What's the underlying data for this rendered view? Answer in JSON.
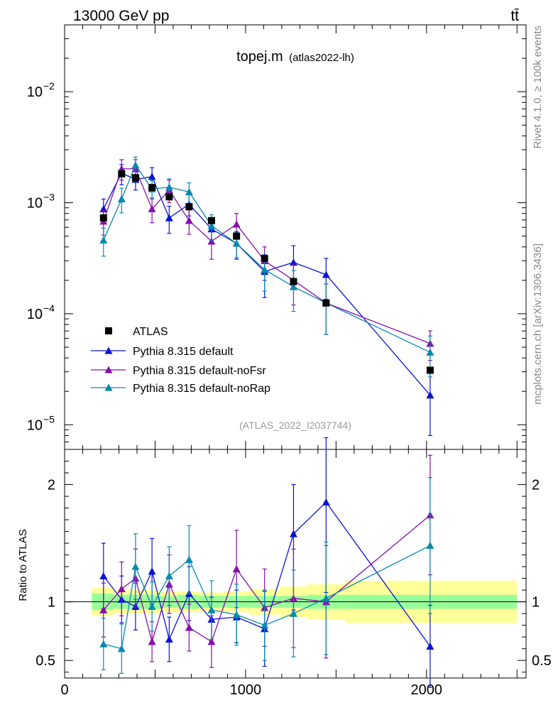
{
  "header": {
    "energy_label": "13000 GeV pp",
    "process_label": "tt̄",
    "title_main": "topej.m",
    "title_sub": "(atlas2022-lh)",
    "analysis_id": "(ATLAS_2022_I2037744)",
    "side_rivet": "Rivet 4.1.0, ≥ 100k events",
    "side_mcplots": "mcplots.cern.ch [arXiv:1306.3436]"
  },
  "chart_data": {
    "type": "scatter",
    "x_axis": {
      "range": [
        0,
        2550
      ],
      "ticks": [
        "0",
        "1000",
        "2000"
      ]
    },
    "main": {
      "yscale": "log",
      "ylim": [
        6e-06,
        0.04
      ],
      "tick_labels": [
        {
          "value": 0.01,
          "base": "10",
          "exp": "−2"
        },
        {
          "value": 0.001,
          "base": "10",
          "exp": "−3"
        },
        {
          "value": 0.0001,
          "base": "10",
          "exp": "−4"
        },
        {
          "value": 1e-05,
          "base": "10",
          "exp": "−5"
        }
      ]
    },
    "ratio": {
      "ylabel": "Ratio to ATLAS",
      "ylim": [
        0.35,
        2.3
      ],
      "tick_labels": [
        "2",
        "1",
        "0.5"
      ],
      "tick_values": [
        2,
        1,
        0.5
      ]
    },
    "legend": {
      "placement": "lower-left",
      "entries": [
        "ATLAS",
        "Pythia 8.315 default",
        "Pythia 8.315 default-noFsr",
        "Pythia 8.315 default-noRap"
      ]
    },
    "bins": [
      150,
      270,
      350,
      440,
      530,
      630,
      740,
      880,
      1020,
      1190,
      1340,
      1550,
      2500
    ],
    "ref_band": {
      "inner": [
        0.07,
        0.06,
        0.06,
        0.06,
        0.05,
        0.06,
        0.05,
        0.05,
        0.05,
        0.05,
        0.06,
        0.06
      ],
      "outer": [
        0.12,
        0.1,
        0.1,
        0.1,
        0.09,
        0.09,
        0.08,
        0.09,
        0.11,
        0.13,
        0.15,
        0.18
      ]
    },
    "atlas": {
      "name": "ATLAS",
      "color": "#000000",
      "x": [
        215,
        315,
        392,
        483,
        578,
        688,
        812,
        950,
        1105,
        1265,
        1445,
        2020
      ],
      "y": [
        0.00073,
        0.00182,
        0.00168,
        0.00137,
        0.00113,
        0.00092,
        0.00069,
        0.0005,
        0.000315,
        0.000195,
        0.000125,
        3.1e-05
      ]
    },
    "series": [
      {
        "name": "Pythia 8.315 default",
        "color": "#0a14d2",
        "x": [
          215,
          315,
          392,
          483,
          578,
          688,
          812,
          950,
          1105,
          1265,
          1445,
          2020
        ],
        "y": [
          0.00088,
          0.00185,
          0.00162,
          0.00172,
          0.00073,
          0.00097,
          0.00058,
          0.00043,
          0.00024,
          0.00029,
          0.000225,
          1.85e-05
        ],
        "y_lo": [
          0.00068,
          0.00145,
          0.0013,
          0.00135,
          0.00053,
          0.00076,
          0.00044,
          0.00031,
          0.00014,
          0.000172,
          0.000135,
          8e-06
        ],
        "y_hi": [
          0.00108,
          0.0022,
          0.00198,
          0.00207,
          0.00093,
          0.00118,
          0.00072,
          0.00055,
          0.00034,
          0.00041,
          0.000315,
          2.9e-05
        ],
        "ratio": [
          1.22,
          1.02,
          0.96,
          1.26,
          0.68,
          1.07,
          0.85,
          0.87,
          0.77,
          1.58,
          1.85,
          0.62
        ],
        "ratio_lo": [
          0.94,
          0.82,
          0.76,
          0.98,
          0.49,
          0.84,
          0.66,
          0.65,
          0.45,
          0.93,
          1.08,
          0.27
        ],
        "ratio_hi": [
          1.5,
          1.22,
          1.16,
          1.54,
          0.87,
          1.3,
          1.04,
          1.1,
          1.09,
          2.0,
          2.4,
          0.97
        ]
      },
      {
        "name": "Pythia 8.315 default-noFsr",
        "color": "#8610aa",
        "x": [
          215,
          315,
          392,
          483,
          578,
          688,
          812,
          950,
          1105,
          1265,
          1445,
          2020
        ],
        "y": [
          0.00068,
          0.00202,
          0.00202,
          0.00088,
          0.0013,
          0.00069,
          0.00045,
          0.00064,
          0.0003,
          0.0002,
          0.000125,
          5.4e-05
        ],
        "y_lo": [
          0.00051,
          0.0016,
          0.0016,
          0.00066,
          0.001,
          0.00052,
          0.00031,
          0.00048,
          0.0002,
          0.00012,
          6.5e-05,
          3.8e-05
        ],
        "y_hi": [
          0.00085,
          0.00244,
          0.00244,
          0.0011,
          0.0016,
          0.00086,
          0.00059,
          0.0008,
          0.0004,
          0.00028,
          0.000185,
          7e-05
        ],
        "ratio": [
          0.93,
          1.11,
          1.2,
          0.66,
          1.15,
          0.78,
          0.66,
          1.28,
          0.95,
          1.03,
          1.0,
          1.74
        ],
        "ratio_lo": [
          0.7,
          0.88,
          0.95,
          0.49,
          0.9,
          0.58,
          0.44,
          0.95,
          0.62,
          0.61,
          0.52,
          1.23
        ],
        "ratio_hi": [
          1.16,
          1.34,
          1.45,
          0.83,
          1.4,
          0.98,
          0.88,
          1.61,
          1.28,
          1.45,
          1.48,
          2.25
        ]
      },
      {
        "name": "Pythia 8.315 default-noRap",
        "color": "#0a88b0",
        "x": [
          215,
          315,
          392,
          483,
          578,
          688,
          812,
          950,
          1105,
          1265,
          1445,
          2020
        ],
        "y": [
          0.00046,
          0.00108,
          0.00218,
          0.00133,
          0.00138,
          0.00125,
          0.00062,
          0.00043,
          0.00025,
          0.000175,
          0.000125,
          4.5e-05
        ],
        "y_lo": [
          0.00033,
          0.00081,
          0.00178,
          0.00108,
          0.00112,
          0.00099,
          0.00046,
          0.00032,
          0.00016,
          0.000105,
          6.5e-05,
          2.7e-05
        ],
        "y_hi": [
          0.00059,
          0.00135,
          0.00258,
          0.00158,
          0.00164,
          0.00151,
          0.00078,
          0.00054,
          0.00034,
          0.000245,
          0.000185,
          6.3e-05
        ],
        "ratio": [
          0.64,
          0.6,
          1.3,
          0.96,
          1.22,
          1.36,
          0.93,
          0.89,
          0.8,
          0.9,
          1.03,
          1.48
        ],
        "ratio_lo": [
          0.42,
          0.39,
          1.02,
          0.75,
          0.97,
          1.07,
          0.68,
          0.63,
          0.5,
          0.53,
          0.55,
          0.9
        ],
        "ratio_hi": [
          0.86,
          0.81,
          1.58,
          1.17,
          1.47,
          1.65,
          1.18,
          1.15,
          1.1,
          1.27,
          1.51,
          2.06
        ]
      }
    ]
  }
}
